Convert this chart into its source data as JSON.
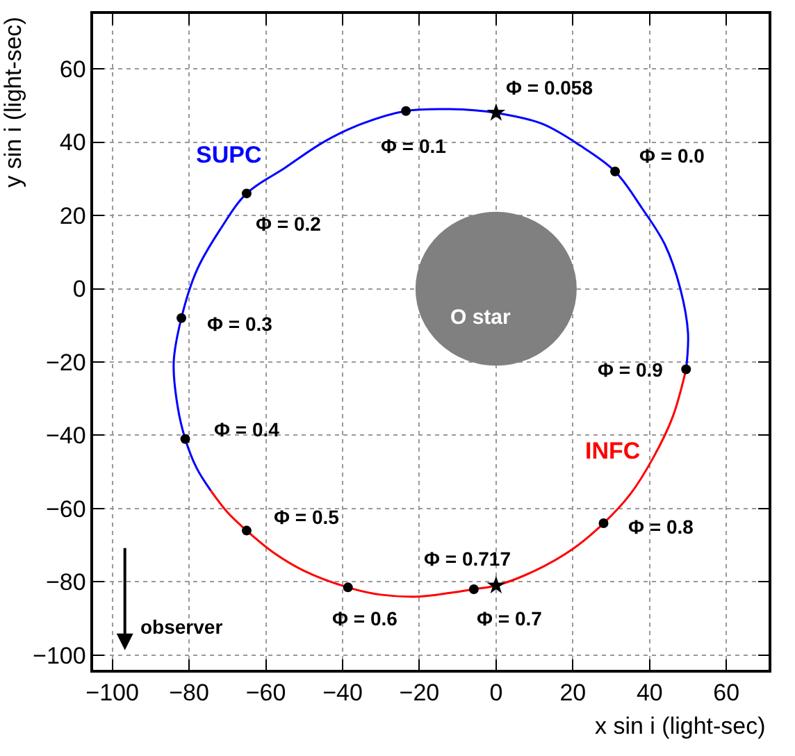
{
  "chart_data": {
    "type": "line",
    "xlabel": "x sin i (light-sec)",
    "ylabel": "y sin i (light-sec)",
    "xlim": [
      -105,
      71
    ],
    "ylim": [
      -104,
      75
    ],
    "xticks": [
      -100,
      -80,
      -60,
      -40,
      -20,
      0,
      20,
      40,
      60
    ],
    "yticks": [
      -100,
      -80,
      -60,
      -40,
      -20,
      0,
      20,
      40,
      60
    ],
    "grid": true,
    "legend": false,
    "series": [
      {
        "name": "SUPC",
        "color": "#0000ff",
        "line_style": "solid",
        "x": [
          49.5,
          50,
          48,
          44,
          38,
          31,
          22,
          12,
          0,
          -12,
          -23.5,
          -35,
          -45,
          -55,
          -65,
          -72,
          -78,
          -82,
          -84,
          -83,
          -81,
          -78,
          -74.4
        ],
        "values": [
          -22,
          -12,
          0,
          12,
          22,
          32,
          39,
          45,
          48,
          49,
          48.5,
          45,
          40,
          33,
          26,
          16,
          5,
          -8,
          -20,
          -32,
          -41,
          -49,
          -55
        ]
      },
      {
        "name": "INFC",
        "color": "#ff0000",
        "line_style": "solid",
        "x": [
          -74.4,
          -70,
          -65,
          -58,
          -50,
          -38.6,
          -30,
          -20,
          -12,
          -5.8,
          0,
          10,
          20,
          28,
          35,
          41,
          46,
          49.5
        ],
        "values": [
          -55,
          -61,
          -66,
          -72,
          -77,
          -81.5,
          -83.5,
          -84,
          -83,
          -82,
          -81,
          -77,
          -71,
          -64,
          -56,
          -46,
          -35,
          -22
        ]
      },
      {
        "color": "#000000",
        "type": "scatter",
        "marker": "circle",
        "x": [
          31,
          -23.5,
          -65,
          -82,
          -81,
          -65,
          -38.6,
          -5.8,
          28,
          49.5
        ],
        "values": [
          32,
          48.5,
          26,
          -8,
          -41,
          -66,
          -81.5,
          -82,
          -64,
          -22
        ]
      },
      {
        "color": "#000000",
        "type": "scatter",
        "marker": "star",
        "x": [
          0,
          0
        ],
        "values": [
          48,
          -81
        ]
      }
    ],
    "annotations": [
      {
        "text": "Φ = 0.0",
        "x": 31,
        "y": 32
      },
      {
        "text": "Φ = 0.058",
        "x": 0,
        "y": 48
      },
      {
        "text": "Φ = 0.1",
        "x": -23.5,
        "y": 48.5
      },
      {
        "text": "Φ = 0.2",
        "x": -65,
        "y": 26
      },
      {
        "text": "Φ = 0.3",
        "x": -82,
        "y": -8
      },
      {
        "text": "Φ = 0.4",
        "x": -81,
        "y": -41
      },
      {
        "text": "Φ = 0.5",
        "x": -65,
        "y": -66
      },
      {
        "text": "Φ = 0.6",
        "x": -38.6,
        "y": -81.5
      },
      {
        "text": "Φ = 0.7",
        "x": -5.8,
        "y": -82
      },
      {
        "text": "Φ = 0.717",
        "x": 0,
        "y": -81
      },
      {
        "text": "Φ = 0.8",
        "x": 28,
        "y": -64
      },
      {
        "text": "Φ = 0.9",
        "x": 49.5,
        "y": -22
      },
      "O star",
      "observer"
    ]
  }
}
